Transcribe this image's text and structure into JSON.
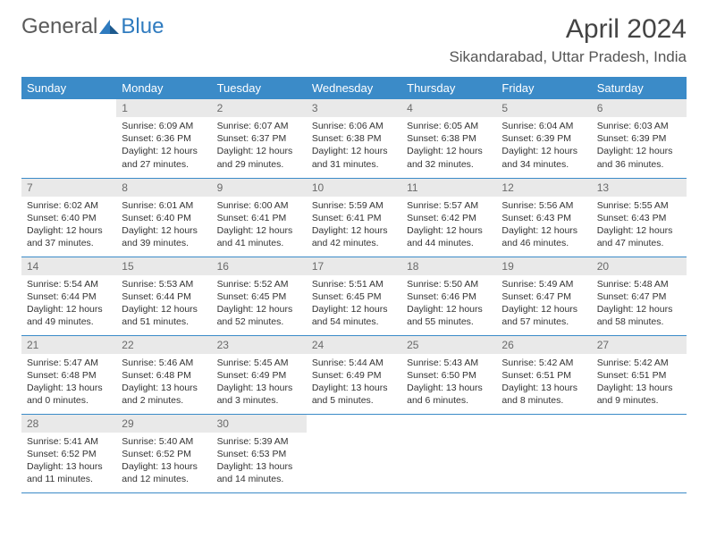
{
  "brand": {
    "general": "General",
    "blue": "Blue"
  },
  "title": "April 2024",
  "location": "Sikandarabad, Uttar Pradesh, India",
  "colors": {
    "header_bg": "#3b8bc8",
    "header_fg": "#ffffff",
    "daynum_bg": "#e9e9e9",
    "daynum_fg": "#6a6a6a",
    "text": "#333333",
    "rule": "#3b8bc8",
    "logo_gray": "#5a5a5a",
    "logo_blue": "#2f7bbf"
  },
  "day_headers": [
    "Sunday",
    "Monday",
    "Tuesday",
    "Wednesday",
    "Thursday",
    "Friday",
    "Saturday"
  ],
  "weeks": [
    [
      {
        "empty": true
      },
      {
        "num": "1",
        "sunrise": "6:09 AM",
        "sunset": "6:36 PM",
        "daylight": "12 hours and 27 minutes."
      },
      {
        "num": "2",
        "sunrise": "6:07 AM",
        "sunset": "6:37 PM",
        "daylight": "12 hours and 29 minutes."
      },
      {
        "num": "3",
        "sunrise": "6:06 AM",
        "sunset": "6:38 PM",
        "daylight": "12 hours and 31 minutes."
      },
      {
        "num": "4",
        "sunrise": "6:05 AM",
        "sunset": "6:38 PM",
        "daylight": "12 hours and 32 minutes."
      },
      {
        "num": "5",
        "sunrise": "6:04 AM",
        "sunset": "6:39 PM",
        "daylight": "12 hours and 34 minutes."
      },
      {
        "num": "6",
        "sunrise": "6:03 AM",
        "sunset": "6:39 PM",
        "daylight": "12 hours and 36 minutes."
      }
    ],
    [
      {
        "num": "7",
        "sunrise": "6:02 AM",
        "sunset": "6:40 PM",
        "daylight": "12 hours and 37 minutes."
      },
      {
        "num": "8",
        "sunrise": "6:01 AM",
        "sunset": "6:40 PM",
        "daylight": "12 hours and 39 minutes."
      },
      {
        "num": "9",
        "sunrise": "6:00 AM",
        "sunset": "6:41 PM",
        "daylight": "12 hours and 41 minutes."
      },
      {
        "num": "10",
        "sunrise": "5:59 AM",
        "sunset": "6:41 PM",
        "daylight": "12 hours and 42 minutes."
      },
      {
        "num": "11",
        "sunrise": "5:57 AM",
        "sunset": "6:42 PM",
        "daylight": "12 hours and 44 minutes."
      },
      {
        "num": "12",
        "sunrise": "5:56 AM",
        "sunset": "6:43 PM",
        "daylight": "12 hours and 46 minutes."
      },
      {
        "num": "13",
        "sunrise": "5:55 AM",
        "sunset": "6:43 PM",
        "daylight": "12 hours and 47 minutes."
      }
    ],
    [
      {
        "num": "14",
        "sunrise": "5:54 AM",
        "sunset": "6:44 PM",
        "daylight": "12 hours and 49 minutes."
      },
      {
        "num": "15",
        "sunrise": "5:53 AM",
        "sunset": "6:44 PM",
        "daylight": "12 hours and 51 minutes."
      },
      {
        "num": "16",
        "sunrise": "5:52 AM",
        "sunset": "6:45 PM",
        "daylight": "12 hours and 52 minutes."
      },
      {
        "num": "17",
        "sunrise": "5:51 AM",
        "sunset": "6:45 PM",
        "daylight": "12 hours and 54 minutes."
      },
      {
        "num": "18",
        "sunrise": "5:50 AM",
        "sunset": "6:46 PM",
        "daylight": "12 hours and 55 minutes."
      },
      {
        "num": "19",
        "sunrise": "5:49 AM",
        "sunset": "6:47 PM",
        "daylight": "12 hours and 57 minutes."
      },
      {
        "num": "20",
        "sunrise": "5:48 AM",
        "sunset": "6:47 PM",
        "daylight": "12 hours and 58 minutes."
      }
    ],
    [
      {
        "num": "21",
        "sunrise": "5:47 AM",
        "sunset": "6:48 PM",
        "daylight": "13 hours and 0 minutes."
      },
      {
        "num": "22",
        "sunrise": "5:46 AM",
        "sunset": "6:48 PM",
        "daylight": "13 hours and 2 minutes."
      },
      {
        "num": "23",
        "sunrise": "5:45 AM",
        "sunset": "6:49 PM",
        "daylight": "13 hours and 3 minutes."
      },
      {
        "num": "24",
        "sunrise": "5:44 AM",
        "sunset": "6:49 PM",
        "daylight": "13 hours and 5 minutes."
      },
      {
        "num": "25",
        "sunrise": "5:43 AM",
        "sunset": "6:50 PM",
        "daylight": "13 hours and 6 minutes."
      },
      {
        "num": "26",
        "sunrise": "5:42 AM",
        "sunset": "6:51 PM",
        "daylight": "13 hours and 8 minutes."
      },
      {
        "num": "27",
        "sunrise": "5:42 AM",
        "sunset": "6:51 PM",
        "daylight": "13 hours and 9 minutes."
      }
    ],
    [
      {
        "num": "28",
        "sunrise": "5:41 AM",
        "sunset": "6:52 PM",
        "daylight": "13 hours and 11 minutes."
      },
      {
        "num": "29",
        "sunrise": "5:40 AM",
        "sunset": "6:52 PM",
        "daylight": "13 hours and 12 minutes."
      },
      {
        "num": "30",
        "sunrise": "5:39 AM",
        "sunset": "6:53 PM",
        "daylight": "13 hours and 14 minutes."
      },
      {
        "empty": true
      },
      {
        "empty": true
      },
      {
        "empty": true
      },
      {
        "empty": true
      }
    ]
  ]
}
